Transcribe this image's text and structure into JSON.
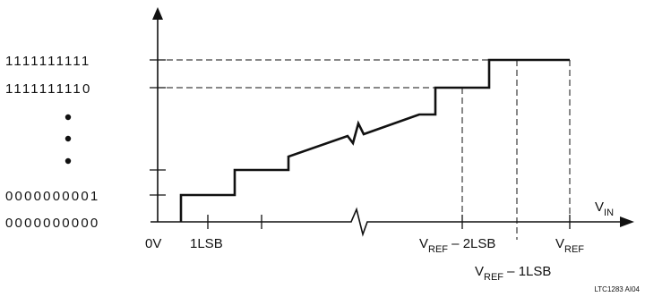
{
  "y_codes": {
    "all_ones": "1111111111",
    "all_ones_minus_one": "1111111110",
    "code_one": "0000000001",
    "code_zero": "0000000000"
  },
  "x_labels": {
    "origin": "0V",
    "one_lsb": "1LSB",
    "vref_minus_2lsb": {
      "main": "V",
      "sub": "REF",
      "rest": " – 2LSB"
    },
    "vref": {
      "main": "V",
      "sub": "REF"
    },
    "vref_minus_1lsb": {
      "main": "V",
      "sub": "REF",
      "rest": " – 1LSB"
    }
  },
  "axis_label": {
    "main": "V",
    "sub": "IN"
  },
  "figure_id": "LTC1283 AI04",
  "colors": {
    "ink": "#111111",
    "background": "#ffffff"
  }
}
